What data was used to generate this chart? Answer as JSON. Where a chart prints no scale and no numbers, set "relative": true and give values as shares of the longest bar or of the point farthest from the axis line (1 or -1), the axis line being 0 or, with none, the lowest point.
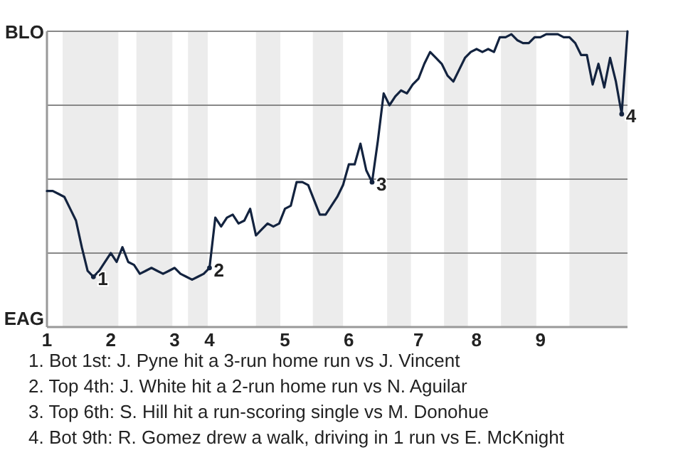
{
  "chart_data": {
    "type": "line",
    "relative": true,
    "categories": [
      "1",
      null,
      null,
      null,
      null,
      null,
      null,
      null,
      null,
      null,
      null,
      "2",
      null,
      null,
      null,
      null,
      null,
      null,
      null,
      null,
      null,
      null,
      "3",
      null,
      null,
      null,
      null,
      null,
      "4",
      null,
      null,
      null,
      null,
      null,
      null,
      null,
      null,
      null,
      null,
      null,
      null,
      "5",
      null,
      null,
      null,
      null,
      null,
      null,
      null,
      null,
      null,
      null,
      "6",
      null,
      null,
      null,
      null,
      null,
      null,
      null,
      null,
      null,
      null,
      null,
      "7",
      null,
      null,
      null,
      null,
      null,
      null,
      null,
      null,
      null,
      "8",
      null,
      null,
      null,
      null,
      null,
      null,
      null,
      null,
      null,
      null,
      "9",
      null,
      null,
      null,
      null,
      null,
      null,
      null,
      null,
      null,
      null,
      null,
      null,
      null,
      null,
      null
    ],
    "grid": "y",
    "marker": "none",
    "line_style": "solid",
    "series": [
      {
        "color": "#13233f",
        "values": [
          0.46,
          0.46,
          0.45,
          0.44,
          0.4,
          0.36,
          0.27,
          0.19,
          0.17,
          0.19,
          0.22,
          0.25,
          0.22,
          0.27,
          0.22,
          0.21,
          0.18,
          0.19,
          0.2,
          0.19,
          0.18,
          0.19,
          0.2,
          0.18,
          0.17,
          0.16,
          0.17,
          0.18,
          0.2,
          0.37,
          0.34,
          0.37,
          0.38,
          0.35,
          0.36,
          0.4,
          0.31,
          0.33,
          0.35,
          0.34,
          0.35,
          0.4,
          0.41,
          0.49,
          0.49,
          0.48,
          0.43,
          0.38,
          0.38,
          0.41,
          0.44,
          0.48,
          0.55,
          0.55,
          0.62,
          0.53,
          0.49,
          0.63,
          0.79,
          0.75,
          0.78,
          0.8,
          0.79,
          0.82,
          0.84,
          0.89,
          0.93,
          0.91,
          0.89,
          0.85,
          0.83,
          0.87,
          0.91,
          0.93,
          0.94,
          0.93,
          0.94,
          0.93,
          0.98,
          0.98,
          0.99,
          0.97,
          0.96,
          0.96,
          0.98,
          0.98,
          0.99,
          0.99,
          0.99,
          0.98,
          0.98,
          0.96,
          0.92,
          0.92,
          0.82,
          0.89,
          0.81,
          0.91,
          0.83,
          0.72,
          1.0
        ]
      },
      {
        "type": "scatter",
        "name": "1",
        "marker": "circle",
        "color": "#13233f",
        "values": [
          null,
          null,
          null,
          null,
          null,
          null,
          null,
          null,
          0.17,
          null,
          null,
          null,
          null,
          null,
          null,
          null,
          null,
          null,
          null,
          null,
          null,
          null,
          null,
          null,
          null,
          null,
          null,
          null,
          null,
          null,
          null,
          null,
          null,
          null,
          null,
          null,
          null,
          null,
          null,
          null,
          null,
          null,
          null,
          null,
          null,
          null,
          null,
          null,
          null,
          null,
          null,
          null,
          null,
          null,
          null,
          null,
          null,
          null,
          null,
          null,
          null,
          null,
          null,
          null,
          null,
          null,
          null,
          null,
          null,
          null,
          null,
          null,
          null,
          null,
          null,
          null,
          null,
          null,
          null,
          null,
          null,
          null,
          null,
          null,
          null,
          null,
          null,
          null,
          null,
          null,
          null,
          null,
          null,
          null,
          null,
          null,
          null,
          null,
          null,
          null,
          null
        ]
      },
      {
        "type": "scatter",
        "name": "2",
        "marker": "circle",
        "color": "#13233f",
        "values": [
          null,
          null,
          null,
          null,
          null,
          null,
          null,
          null,
          null,
          null,
          null,
          null,
          null,
          null,
          null,
          null,
          null,
          null,
          null,
          null,
          null,
          null,
          null,
          null,
          null,
          null,
          null,
          null,
          0.2,
          null,
          null,
          null,
          null,
          null,
          null,
          null,
          null,
          null,
          null,
          null,
          null,
          null,
          null,
          null,
          null,
          null,
          null,
          null,
          null,
          null,
          null,
          null,
          null,
          null,
          null,
          null,
          null,
          null,
          null,
          null,
          null,
          null,
          null,
          null,
          null,
          null,
          null,
          null,
          null,
          null,
          null,
          null,
          null,
          null,
          null,
          null,
          null,
          null,
          null,
          null,
          null,
          null,
          null,
          null,
          null,
          null,
          null,
          null,
          null,
          null,
          null,
          null,
          null,
          null,
          null,
          null,
          null,
          null,
          null,
          null,
          null
        ]
      },
      {
        "type": "scatter",
        "name": "3",
        "marker": "circle",
        "color": "#13233f",
        "values": [
          null,
          null,
          null,
          null,
          null,
          null,
          null,
          null,
          null,
          null,
          null,
          null,
          null,
          null,
          null,
          null,
          null,
          null,
          null,
          null,
          null,
          null,
          null,
          null,
          null,
          null,
          null,
          null,
          null,
          null,
          null,
          null,
          null,
          null,
          null,
          null,
          null,
          null,
          null,
          null,
          null,
          null,
          null,
          null,
          null,
          null,
          null,
          null,
          null,
          null,
          null,
          null,
          null,
          null,
          null,
          null,
          0.49,
          null,
          null,
          null,
          null,
          null,
          null,
          null,
          null,
          null,
          null,
          null,
          null,
          null,
          null,
          null,
          null,
          null,
          null,
          null,
          null,
          null,
          null,
          null,
          null,
          null,
          null,
          null,
          null,
          null,
          null,
          null,
          null,
          null,
          null,
          null,
          null,
          null,
          null,
          null,
          null,
          null,
          null,
          null,
          null
        ]
      },
      {
        "type": "scatter",
        "name": "4",
        "marker": "circle",
        "color": "#13233f",
        "values": [
          null,
          null,
          null,
          null,
          null,
          null,
          null,
          null,
          null,
          null,
          null,
          null,
          null,
          null,
          null,
          null,
          null,
          null,
          null,
          null,
          null,
          null,
          null,
          null,
          null,
          null,
          null,
          null,
          null,
          null,
          null,
          null,
          null,
          null,
          null,
          null,
          null,
          null,
          null,
          null,
          null,
          null,
          null,
          null,
          null,
          null,
          null,
          null,
          null,
          null,
          null,
          null,
          null,
          null,
          null,
          null,
          null,
          null,
          null,
          null,
          null,
          null,
          null,
          null,
          null,
          null,
          null,
          null,
          null,
          null,
          null,
          null,
          null,
          null,
          null,
          null,
          null,
          null,
          null,
          null,
          null,
          null,
          null,
          null,
          null,
          null,
          null,
          null,
          null,
          null,
          null,
          null,
          null,
          null,
          null,
          null,
          null,
          null,
          null,
          0.72,
          null
        ]
      }
    ],
    "annotations": [
      "BLO",
      "EAG",
      "1. Bot 1st: J. Pyne hit a 3-run home run vs J. Vincent",
      "2. Top 4th: J. White hit a 2-run home run vs N. Aguilar",
      "3. Top 6th: S. Hill hit a run-scoring single vs M. Donohue",
      "4. Bot 9th: R. Gomez drew a walk, driving in 1 run vs E. McKnight"
    ]
  }
}
